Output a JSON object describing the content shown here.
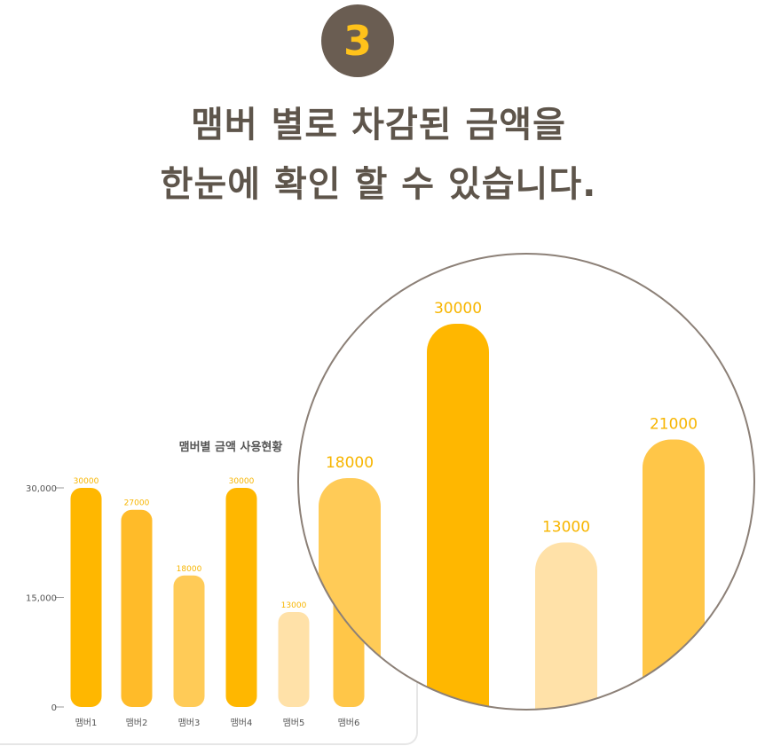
{
  "step": {
    "number": "3"
  },
  "headline": {
    "line1": "맴버 별로 차감된 금액을",
    "line2": "한눈에 확인 할 수 있습니다."
  },
  "colors": {
    "badge_bg": "#6a5d52",
    "badge_text": "#ffc21a",
    "label_color": "#f7b500",
    "circle_stroke": "#8c8077"
  },
  "chart_data": {
    "type": "bar",
    "title": "맴버별 금액 사용현황",
    "categories": [
      "맴버1",
      "맴버2",
      "맴버3",
      "맴버4",
      "맴버5",
      "맴버6"
    ],
    "values": [
      30000,
      27000,
      18000,
      30000,
      13000,
      21000
    ],
    "data_labels": [
      "30000",
      "27000",
      "18000",
      "30000",
      "13000",
      ""
    ],
    "colors": [
      "#ffb700",
      "#ffbb29",
      "#ffcb57",
      "#ffb700",
      "#ffe1a8",
      "#ffc648"
    ],
    "yticks": [
      "30,000",
      "15,000",
      "0"
    ],
    "ytick_values": [
      30000,
      15000,
      0
    ],
    "ylim": [
      0,
      30000
    ]
  },
  "zoom": {
    "values": [
      18000,
      30000,
      13000,
      21000
    ],
    "labels": [
      "18000",
      "30000",
      "13000",
      "21000"
    ],
    "colors": [
      "#ffcb57",
      "#ffb700",
      "#ffe1a8",
      "#ffc648"
    ]
  }
}
